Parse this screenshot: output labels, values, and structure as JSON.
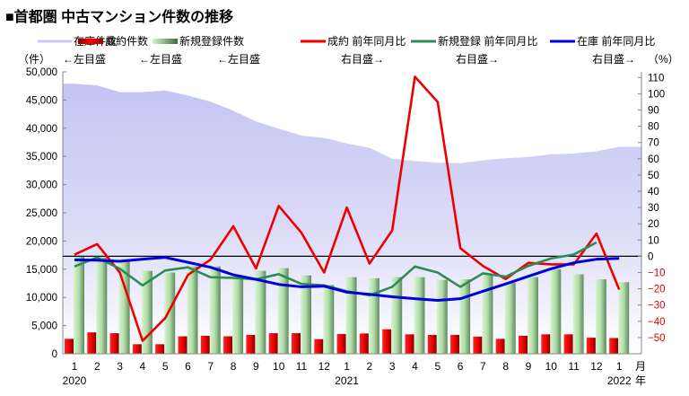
{
  "chart_data": {
    "type": "bar+line+area",
    "title": "■首都圏 中古マンション件数の推移",
    "left_unit": "（件）",
    "right_unit": "（%）",
    "month_label": "月",
    "year_label": "年",
    "categories": [
      "1",
      "2",
      "3",
      "4",
      "5",
      "6",
      "7",
      "8",
      "9",
      "10",
      "11",
      "12",
      "1",
      "2",
      "3",
      "4",
      "5",
      "6",
      "7",
      "8",
      "9",
      "10",
      "11",
      "12",
      "1"
    ],
    "years": [
      {
        "label": "2020",
        "index": 0
      },
      {
        "label": "2021",
        "index": 12
      },
      {
        "label": "2022",
        "index": 24
      }
    ],
    "left_axis": {
      "min": 0,
      "max": 50000,
      "ticks": [
        0,
        5000,
        10000,
        15000,
        20000,
        25000,
        30000,
        35000,
        40000,
        45000,
        50000
      ],
      "tick_labels": [
        "0",
        "5,000",
        "10,000",
        "15,000",
        "20,000",
        "25,000",
        "30,000",
        "35,000",
        "40,000",
        "45,000",
        "50,000"
      ]
    },
    "right_axis": {
      "min": -60,
      "max": 113.5,
      "ticks": [
        110,
        100,
        90,
        80,
        70,
        60,
        50,
        40,
        30,
        20,
        10,
        0,
        -10,
        -20,
        -30,
        -40,
        -50
      ],
      "negative_color": "#e00000"
    },
    "grid": false,
    "legend_placement": "top",
    "series": [
      {
        "name": "在庫件数",
        "axis_note": "←左目盛",
        "type": "area",
        "axis": "left",
        "color": "#c8c8f4",
        "values": [
          47900,
          47600,
          46400,
          46400,
          46700,
          45800,
          44700,
          43100,
          41200,
          39900,
          38700,
          38300,
          37300,
          36500,
          34600,
          34200,
          33900,
          33800,
          34300,
          34700,
          34900,
          35400,
          35500,
          35900,
          36700
        ]
      },
      {
        "name": "成約件数",
        "axis_note": "←左目盛",
        "type": "bar",
        "axis": "left",
        "color": "#e00000",
        "values": [
          2650,
          3800,
          3650,
          1700,
          1700,
          3100,
          3200,
          3100,
          3350,
          3650,
          3650,
          2600,
          3500,
          3600,
          4350,
          3450,
          3350,
          3350,
          3050,
          2650,
          3200,
          3450,
          3450,
          2850,
          2800
        ]
      },
      {
        "name": "新規登録件数",
        "axis_note": "←左目盛",
        "type": "bar",
        "axis": "left",
        "color": "#a8dca0",
        "values": [
          17400,
          17100,
          16800,
          14700,
          14400,
          15500,
          15500,
          13600,
          14700,
          15200,
          13900,
          12200,
          13600,
          13400,
          13600,
          13600,
          13100,
          13200,
          14000,
          12600,
          13600,
          15000,
          14100,
          13200,
          12700
        ]
      },
      {
        "name": "成約 前年同月比",
        "axis_note": "右目盛→",
        "type": "line",
        "axis": "right",
        "color": "#ee0000",
        "values": [
          1,
          7.5,
          -10,
          -52,
          -38,
          -11.5,
          -2,
          18.5,
          -7.5,
          31,
          14.5,
          -10,
          30,
          -4.5,
          16,
          110.5,
          95,
          5,
          -6,
          -14,
          -4,
          -5,
          -5,
          14,
          -20.5
        ]
      },
      {
        "name": "新規登録 前年同月比",
        "axis_note": "右目盛→",
        "type": "line",
        "axis": "right",
        "color": "#2e8b57",
        "values": [
          -6.3,
          -0.7,
          -7.7,
          -17.9,
          -8.7,
          -6.8,
          -12.9,
          -13.3,
          -14.2,
          -11,
          -17,
          -17.9,
          -21.5,
          -24,
          -18.8,
          -6.3,
          -10,
          -18.8,
          -10.5,
          -12.5,
          -5.9,
          -1.3,
          1.1,
          8.5,
          null
        ]
      },
      {
        "name": "在庫 前年同月比",
        "axis_note": "右目盛→",
        "type": "line",
        "axis": "right",
        "color": "#0000dd",
        "values": [
          -2.2,
          -2.4,
          -3.1,
          -1.8,
          -0.7,
          -3.7,
          -6.8,
          -11.4,
          -14.2,
          -17.3,
          -18.8,
          -18.4,
          -22.1,
          -23.4,
          -24.9,
          -26.1,
          -27.1,
          -26.1,
          -21.5,
          -17,
          -12.3,
          -7.7,
          -4,
          -1.8,
          -1.3
        ]
      }
    ]
  }
}
